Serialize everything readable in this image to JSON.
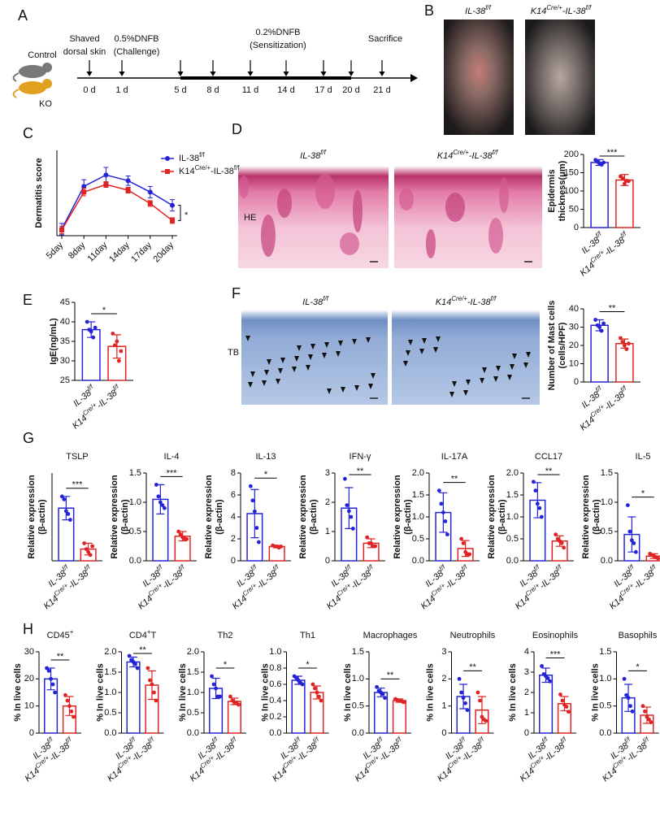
{
  "panel_labels": [
    "A",
    "B",
    "C",
    "D",
    "E",
    "F",
    "G",
    "H"
  ],
  "genotypes": {
    "control": [
      "IL-38",
      "f/f"
    ],
    "ko": [
      "K14",
      "Cre/+",
      "-IL-38",
      "f/f"
    ]
  },
  "timeline": {
    "groups": [
      "Control",
      "KO"
    ],
    "days": [
      "0 d",
      "1 d",
      "5 d",
      "8 d",
      "11 d",
      "14 d",
      "17 d",
      "20 d",
      "21 d"
    ],
    "events": [
      [
        "Shaved",
        "dorsal skin"
      ],
      [
        "0.5%DNFB",
        "(Challenge)"
      ],
      [
        "0.2%DNFB",
        "(Sensitization)"
      ],
      [
        "Sacrifice"
      ]
    ]
  },
  "stains": [
    "HE",
    "TB"
  ],
  "chart_data": [
    {
      "type": "line",
      "ylabel": "Dermatitis score",
      "categories": [
        "5day",
        "8day",
        "11day",
        "14day",
        "17day",
        "20day"
      ],
      "ylim": [
        2,
        11
      ],
      "series": [
        {
          "name": [
            "IL-38",
            "f/f"
          ],
          "color": "#2424d6",
          "values": [
            2.7,
            7.2,
            8.4,
            7.8,
            6.6,
            5.2
          ],
          "errors": [
            0.6,
            0.7,
            0.8,
            0.5,
            0.6,
            0.6
          ]
        },
        {
          "name": [
            "K14",
            "Cre/+",
            "-IL-38",
            "f/f"
          ],
          "color": "#e02424",
          "values": [
            2.6,
            6.6,
            7.4,
            6.8,
            5.4,
            3.6
          ],
          "errors": [
            0.4,
            0.4,
            0.3,
            0.3,
            0.3,
            0.3
          ]
        }
      ],
      "significance": "*"
    },
    {
      "type": "bar",
      "ylabel": [
        "Epidermis",
        "thickness(μm)"
      ],
      "ylim": [
        0,
        200
      ],
      "yticks": [
        0,
        50,
        100,
        150,
        200
      ],
      "colors": [
        "#2424d6",
        "#e02424"
      ],
      "values": [
        178,
        130
      ],
      "errors": [
        8,
        15
      ],
      "points": [
        [
          185,
          180,
          175,
          172,
          178
        ],
        [
          140,
          135,
          120,
          128,
          127
        ]
      ],
      "significance": "***"
    },
    {
      "type": "bar",
      "ylabel": [
        "IgE(ng/mL)"
      ],
      "ylim": [
        25,
        45
      ],
      "yticks": [
        25,
        30,
        35,
        40,
        45
      ],
      "colors": [
        "#2424d6",
        "#e02424"
      ],
      "values": [
        38,
        33.7
      ],
      "errors": [
        2,
        3
      ],
      "points": [
        [
          40,
          38,
          37.5,
          36,
          38.5
        ],
        [
          37,
          34,
          35,
          30,
          32.5
        ]
      ],
      "significance": "*"
    },
    {
      "type": "bar",
      "ylabel": [
        "Number of Mast cells",
        "(cells/HPF)"
      ],
      "ylim": [
        0,
        40
      ],
      "yticks": [
        0,
        10,
        20,
        30,
        40
      ],
      "colors": [
        "#2424d6",
        "#e02424"
      ],
      "values": [
        31,
        21
      ],
      "errors": [
        3,
        2.5
      ],
      "points": [
        [
          34,
          31,
          30,
          28,
          32
        ],
        [
          24,
          22,
          20,
          18,
          21
        ]
      ],
      "significance": "**"
    },
    {
      "type": "bar",
      "title": [
        "TSLP"
      ],
      "ylabel": [
        "Relative expression",
        "(β-actin)"
      ],
      "ylim": [
        0,
        30
      ],
      "colors": [
        "#2424d6",
        "#e02424"
      ],
      "values": [
        18,
        4
      ],
      "errors": [
        4,
        2
      ],
      "points": [
        [
          22,
          21,
          17,
          16,
          14
        ],
        [
          6,
          4,
          3,
          2,
          5
        ]
      ],
      "significance": "***"
    },
    {
      "type": "bar",
      "title": [
        "IL-4"
      ],
      "ylabel": [
        "Relative expression",
        "(β-actin)"
      ],
      "ylim": [
        0,
        1.5
      ],
      "yticks": [
        {
          "value": 0,
          "label": "0.0"
        },
        0.5,
        {
          "value": 1,
          "label": "1.0"
        },
        1.5
      ],
      "colors": [
        "#2424d6",
        "#e02424"
      ],
      "values": [
        1.05,
        0.42
      ],
      "errors": [
        0.25,
        0.08
      ],
      "points": [
        [
          1.3,
          1.1,
          1.0,
          0.95,
          0.9
        ],
        [
          0.5,
          0.45,
          0.4,
          0.38,
          0.37
        ]
      ],
      "significance": "***"
    },
    {
      "type": "bar",
      "title": [
        "IL-13"
      ],
      "ylabel": [
        "Relative expression",
        "(β-actin)"
      ],
      "ylim": [
        0,
        8
      ],
      "yticks": [
        0,
        2,
        4,
        6,
        8
      ],
      "colors": [
        "#2424d6",
        "#e02424"
      ],
      "values": [
        4.3,
        1.3
      ],
      "errors": [
        2.2,
        0.1
      ],
      "points": [
        [
          6.8,
          5.5,
          4.5,
          3,
          1.7
        ],
        [
          1.4,
          1.3,
          1.3,
          1.2,
          1.3
        ]
      ],
      "significance": "*"
    },
    {
      "type": "bar",
      "title": [
        "IFN-γ"
      ],
      "ylabel": [
        "Relative expression",
        "(β-actin)"
      ],
      "ylim": [
        0,
        3
      ],
      "yticks": [
        0,
        1,
        2,
        3
      ],
      "colors": [
        "#2424d6",
        "#e02424"
      ],
      "values": [
        1.8,
        0.6
      ],
      "errors": [
        0.7,
        0.15
      ],
      "points": [
        [
          2.8,
          1.9,
          1.7,
          1.5,
          1.1
        ],
        [
          0.8,
          0.6,
          0.6,
          0.5,
          0.5
        ]
      ],
      "significance": "**"
    },
    {
      "type": "bar",
      "title": [
        "IL-17A"
      ],
      "ylabel": [
        "Relative expression",
        "(β-actin)"
      ],
      "ylim": [
        0,
        2
      ],
      "yticks": [
        {
          "value": 0,
          "label": "0.0"
        },
        0.5,
        {
          "value": 1,
          "label": "1.0"
        },
        1.5,
        {
          "value": 2,
          "label": "2.0"
        }
      ],
      "colors": [
        "#2424d6",
        "#e02424"
      ],
      "values": [
        1.1,
        0.28
      ],
      "errors": [
        0.45,
        0.18
      ],
      "points": [
        [
          1.6,
          1.3,
          1.1,
          0.9,
          0.6
        ],
        [
          0.5,
          0.4,
          0.2,
          0.15,
          0.15
        ]
      ],
      "significance": "**"
    },
    {
      "type": "bar",
      "title": [
        "CCL17"
      ],
      "ylabel": [
        "Relative expression",
        "(β-actin)"
      ],
      "ylim": [
        0,
        2
      ],
      "yticks": [
        {
          "value": 0,
          "label": "0.0"
        },
        0.5,
        {
          "value": 1,
          "label": "1.0"
        },
        1.5,
        {
          "value": 2,
          "label": "2.0"
        }
      ],
      "colors": [
        "#2424d6",
        "#e02424"
      ],
      "values": [
        1.38,
        0.45
      ],
      "errors": [
        0.4,
        0.12
      ],
      "points": [
        [
          1.8,
          1.6,
          1.3,
          1.2,
          1.0
        ],
        [
          0.6,
          0.5,
          0.45,
          0.4,
          0.3
        ]
      ],
      "significance": "**"
    },
    {
      "type": "bar",
      "title": [
        "IL-5"
      ],
      "ylabel": [
        "Relative expression",
        "(β-actin)"
      ],
      "ylim": [
        0,
        1.5
      ],
      "yticks": [
        {
          "value": 0,
          "label": "0.0"
        },
        0.5,
        {
          "value": 1,
          "label": "1.0"
        },
        1.5
      ],
      "colors": [
        "#2424d6",
        "#e02424"
      ],
      "values": [
        0.45,
        0.08
      ],
      "errors": [
        0.3,
        0.04
      ],
      "points": [
        [
          0.95,
          0.5,
          0.35,
          0.3,
          0.15
        ],
        [
          0.12,
          0.1,
          0.08,
          0.06,
          0.04
        ]
      ],
      "significance": "*"
    },
    {
      "type": "bar",
      "title": [
        "CD45",
        "+"
      ],
      "ylabel": [
        "% In live cells"
      ],
      "ylim": [
        0,
        30
      ],
      "yticks": [
        0,
        10,
        20,
        30
      ],
      "colors": [
        "#2424d6",
        "#e02424"
      ],
      "values": [
        20,
        10
      ],
      "errors": [
        4,
        3.5
      ],
      "points": [
        [
          24,
          23,
          20,
          18,
          15
        ],
        [
          14,
          12,
          10,
          8,
          6
        ]
      ],
      "significance": "**"
    },
    {
      "type": "bar",
      "title": [
        "CD4",
        "+",
        "T"
      ],
      "ylabel": [
        "% In live cells"
      ],
      "ylim": [
        0,
        2
      ],
      "yticks": [
        {
          "value": 0,
          "label": "0.0"
        },
        0.5,
        {
          "value": 1,
          "label": "1.0"
        },
        1.5,
        {
          "value": 2,
          "label": "2.0"
        }
      ],
      "colors": [
        "#2424d6",
        "#e02424"
      ],
      "values": [
        1.75,
        1.18
      ],
      "errors": [
        0.12,
        0.35
      ],
      "points": [
        [
          1.9,
          1.8,
          1.75,
          1.7,
          1.6
        ],
        [
          1.6,
          1.3,
          1.2,
          1.0,
          0.8
        ]
      ],
      "significance": "**"
    },
    {
      "type": "bar",
      "title": [
        "Th2"
      ],
      "ylabel": [
        "% In live cells"
      ],
      "ylim": [
        0,
        2
      ],
      "yticks": [
        {
          "value": 0,
          "label": "0.0"
        },
        0.5,
        {
          "value": 1,
          "label": "1.0"
        },
        1.5,
        {
          "value": 2,
          "label": "2.0"
        }
      ],
      "colors": [
        "#2424d6",
        "#e02424"
      ],
      "values": [
        1.1,
        0.78
      ],
      "errors": [
        0.25,
        0.08
      ],
      "points": [
        [
          1.4,
          1.2,
          1.1,
          0.9,
          0.9
        ],
        [
          0.9,
          0.8,
          0.75,
          0.75,
          0.7
        ]
      ],
      "significance": "*"
    },
    {
      "type": "bar",
      "title": [
        "Th1"
      ],
      "ylabel": [
        "% In live cells"
      ],
      "ylim": [
        0,
        1
      ],
      "yticks": [
        {
          "value": 0,
          "label": "0.0"
        },
        0.2,
        0.4,
        0.6,
        0.8,
        {
          "value": 1,
          "label": "1.0"
        }
      ],
      "colors": [
        "#2424d6",
        "#e02424"
      ],
      "values": [
        0.65,
        0.5
      ],
      "errors": [
        0.05,
        0.08
      ],
      "points": [
        [
          0.7,
          0.68,
          0.65,
          0.62,
          0.6
        ],
        [
          0.6,
          0.55,
          0.5,
          0.45,
          0.4
        ]
      ],
      "significance": "*"
    },
    {
      "type": "bar",
      "title": [
        "Macrophages"
      ],
      "ylabel": [
        "% In live cells"
      ],
      "ylim": [
        0,
        1.5
      ],
      "yticks": [
        {
          "value": 0,
          "label": "0.0"
        },
        0.5,
        {
          "value": 1,
          "label": "1.0"
        },
        1.5
      ],
      "colors": [
        "#2424d6",
        "#e02424"
      ],
      "values": [
        0.75,
        0.6
      ],
      "errors": [
        0.08,
        0.03
      ],
      "points": [
        [
          0.85,
          0.78,
          0.75,
          0.72,
          0.65
        ],
        [
          0.63,
          0.61,
          0.6,
          0.59,
          0.57
        ]
      ],
      "significance": "**"
    },
    {
      "type": "bar",
      "title": [
        "Neutrophils"
      ],
      "ylabel": [
        "% In live cells"
      ],
      "ylim": [
        0,
        3
      ],
      "yticks": [
        0,
        1,
        2,
        3
      ],
      "colors": [
        "#2424d6",
        "#e02424"
      ],
      "values": [
        1.35,
        0.85
      ],
      "errors": [
        0.45,
        0.5
      ],
      "points": [
        [
          2.0,
          1.5,
          1.3,
          1.1,
          0.85
        ],
        [
          1.5,
          1.2,
          0.6,
          0.5,
          0.45
        ]
      ],
      "significance": "**"
    },
    {
      "type": "bar",
      "title": [
        "Eosinophils"
      ],
      "ylabel": [
        "% In live cells"
      ],
      "ylim": [
        0,
        4
      ],
      "yticks": [
        0,
        1,
        2,
        3,
        4
      ],
      "colors": [
        "#2424d6",
        "#e02424"
      ],
      "values": [
        2.85,
        1.45
      ],
      "errors": [
        0.35,
        0.35
      ],
      "points": [
        [
          3.3,
          2.9,
          2.8,
          2.7,
          2.55
        ],
        [
          1.9,
          1.6,
          1.4,
          1.3,
          1.05
        ]
      ],
      "significance": "***"
    },
    {
      "type": "bar",
      "title": [
        "Basophils"
      ],
      "ylabel": [
        "% In live cells"
      ],
      "ylim": [
        0,
        1.5
      ],
      "yticks": [
        {
          "value": 0,
          "label": "0.0"
        },
        0.5,
        {
          "value": 1,
          "label": "1.0"
        },
        1.5
      ],
      "colors": [
        "#2424d6",
        "#e02424"
      ],
      "values": [
        0.65,
        0.33
      ],
      "errors": [
        0.25,
        0.15
      ],
      "points": [
        [
          1.0,
          0.7,
          0.65,
          0.5,
          0.4
        ],
        [
          0.5,
          0.4,
          0.3,
          0.25,
          0.2
        ]
      ],
      "significance": "*"
    }
  ]
}
